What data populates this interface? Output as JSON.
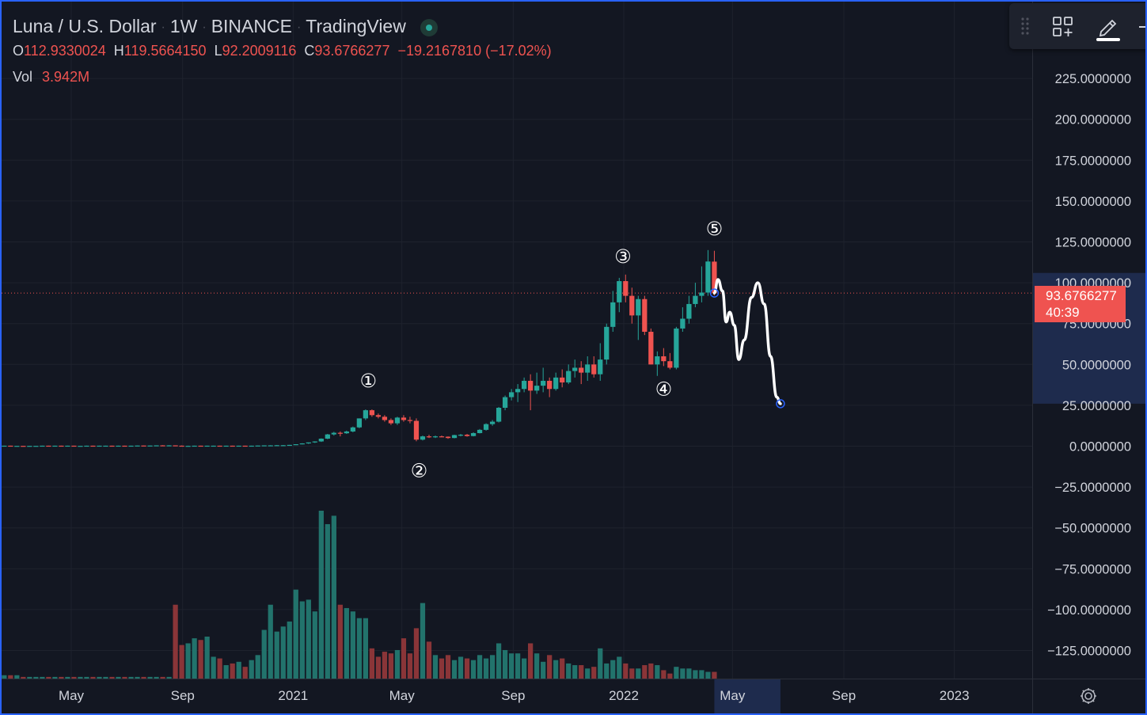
{
  "header": {
    "symbol": "Luna / U.S. Dollar",
    "interval": "1W",
    "exchange": "BINANCE",
    "source": "TradingView"
  },
  "ohlc": {
    "o_label": "O",
    "o": "112.9330024",
    "h_label": "H",
    "h": "119.5664150",
    "l_label": "L",
    "l": "92.2009116",
    "c_label": "C",
    "c": "93.6766277",
    "change": "−19.2167810 (−17.02%)"
  },
  "volume": {
    "label": "Vol",
    "value": "3.942M"
  },
  "price_tag": {
    "price": "93.6766277",
    "countdown": "40:39"
  },
  "colors": {
    "background": "#131722",
    "up": "#26a69a",
    "down": "#ef5350",
    "volume_up": "#22736c",
    "volume_down": "#8a3538",
    "grid": "#1e222d",
    "axis_text": "#d1d4dc",
    "highlight": "#1e2b4d",
    "frame": "#2962ff"
  },
  "icons": [
    "drag-handle-icon",
    "add-widget-icon",
    "pencil-icon",
    "settings-gear-icon"
  ],
  "chart_data": {
    "type": "candlestick",
    "title": "Luna / U.S. Dollar · 1W · BINANCE",
    "ylim": [
      -145,
      240
    ],
    "y_ticks": [
      "225.0000000",
      "200.0000000",
      "175.0000000",
      "150.0000000",
      "125.0000000",
      "100.0000000",
      "75.0000000",
      "50.0000000",
      "25.0000000",
      "0.0000000",
      "−25.0000000",
      "−50.0000000",
      "−75.0000000",
      "−100.0000000",
      "−125.0000000"
    ],
    "y_tick_values": [
      225,
      200,
      175,
      150,
      125,
      100,
      75,
      50,
      25,
      0,
      -25,
      -50,
      -75,
      -100,
      -125
    ],
    "x_ticks": [
      {
        "label": "May",
        "date": "2020-05-01"
      },
      {
        "label": "Sep",
        "date": "2020-09-01"
      },
      {
        "label": "2021",
        "date": "2021-01-01"
      },
      {
        "label": "May",
        "date": "2021-05-01"
      },
      {
        "label": "Sep",
        "date": "2021-09-01"
      },
      {
        "label": "2022",
        "date": "2022-01-01"
      },
      {
        "label": "May",
        "date": "2022-05-01"
      },
      {
        "label": "Sep",
        "date": "2022-09-01"
      },
      {
        "label": "2023",
        "date": "2023-01-01"
      }
    ],
    "x_range": [
      "2020-02-14",
      "2023-03-10"
    ],
    "last_price": 93.6766277,
    "volume_max": 100,
    "candles": [
      {
        "date": "2020-02-17",
        "o": 0.2,
        "h": 0.3,
        "l": 0.2,
        "c": 0.3,
        "v": 2
      },
      {
        "date": "2020-02-24",
        "o": 0.3,
        "h": 0.3,
        "l": 0.2,
        "c": 0.2,
        "v": 2
      },
      {
        "date": "2020-03-02",
        "o": 0.2,
        "h": 0.2,
        "l": 0.2,
        "c": 0.2,
        "v": 2
      },
      {
        "date": "2020-03-09",
        "o": 0.2,
        "h": 0.2,
        "l": 0.1,
        "c": 0.1,
        "v": 1
      },
      {
        "date": "2020-03-16",
        "o": 0.1,
        "h": 0.2,
        "l": 0.1,
        "c": 0.2,
        "v": 1
      },
      {
        "date": "2020-03-23",
        "o": 0.2,
        "h": 0.2,
        "l": 0.2,
        "c": 0.2,
        "v": 1
      },
      {
        "date": "2020-03-30",
        "o": 0.2,
        "h": 0.3,
        "l": 0.2,
        "c": 0.3,
        "v": 1
      },
      {
        "date": "2020-04-06",
        "o": 0.3,
        "h": 0.3,
        "l": 0.2,
        "c": 0.2,
        "v": 1
      },
      {
        "date": "2020-04-13",
        "o": 0.2,
        "h": 0.3,
        "l": 0.2,
        "c": 0.3,
        "v": 1
      },
      {
        "date": "2020-04-20",
        "o": 0.3,
        "h": 0.3,
        "l": 0.2,
        "c": 0.2,
        "v": 1
      },
      {
        "date": "2020-04-27",
        "o": 0.2,
        "h": 0.3,
        "l": 0.2,
        "c": 0.3,
        "v": 1
      },
      {
        "date": "2020-05-04",
        "o": 0.3,
        "h": 0.3,
        "l": 0.2,
        "c": 0.2,
        "v": 1
      },
      {
        "date": "2020-05-11",
        "o": 0.2,
        "h": 0.2,
        "l": 0.2,
        "c": 0.2,
        "v": 1
      },
      {
        "date": "2020-05-18",
        "o": 0.2,
        "h": 0.3,
        "l": 0.2,
        "c": 0.3,
        "v": 1
      },
      {
        "date": "2020-05-25",
        "o": 0.3,
        "h": 0.3,
        "l": 0.2,
        "c": 0.2,
        "v": 1
      },
      {
        "date": "2020-06-01",
        "o": 0.2,
        "h": 0.3,
        "l": 0.2,
        "c": 0.3,
        "v": 1
      },
      {
        "date": "2020-06-08",
        "o": 0.3,
        "h": 0.3,
        "l": 0.2,
        "c": 0.3,
        "v": 1
      },
      {
        "date": "2020-06-15",
        "o": 0.3,
        "h": 0.3,
        "l": 0.2,
        "c": 0.2,
        "v": 1
      },
      {
        "date": "2020-06-22",
        "o": 0.2,
        "h": 0.3,
        "l": 0.2,
        "c": 0.3,
        "v": 1
      },
      {
        "date": "2020-06-29",
        "o": 0.3,
        "h": 0.3,
        "l": 0.2,
        "c": 0.2,
        "v": 1
      },
      {
        "date": "2020-07-06",
        "o": 0.2,
        "h": 0.3,
        "l": 0.2,
        "c": 0.3,
        "v": 1
      },
      {
        "date": "2020-07-13",
        "o": 0.3,
        "h": 0.4,
        "l": 0.3,
        "c": 0.4,
        "v": 1
      },
      {
        "date": "2020-07-20",
        "o": 0.4,
        "h": 0.4,
        "l": 0.3,
        "c": 0.3,
        "v": 1
      },
      {
        "date": "2020-07-27",
        "o": 0.3,
        "h": 0.4,
        "l": 0.3,
        "c": 0.4,
        "v": 1
      },
      {
        "date": "2020-08-03",
        "o": 0.4,
        "h": 0.5,
        "l": 0.4,
        "c": 0.5,
        "v": 1
      },
      {
        "date": "2020-08-10",
        "o": 0.5,
        "h": 0.6,
        "l": 0.4,
        "c": 0.4,
        "v": 1
      },
      {
        "date": "2020-08-17",
        "o": 0.4,
        "h": 0.6,
        "l": 0.4,
        "c": 0.5,
        "v": 1
      },
      {
        "date": "2020-08-24",
        "o": 0.5,
        "h": 0.5,
        "l": 0.3,
        "c": 0.3,
        "v": 44
      },
      {
        "date": "2020-08-31",
        "o": 0.3,
        "h": 0.4,
        "l": 0.2,
        "c": 0.2,
        "v": 20
      },
      {
        "date": "2020-09-07",
        "o": 0.2,
        "h": 0.3,
        "l": 0.2,
        "c": 0.2,
        "v": 21
      },
      {
        "date": "2020-09-14",
        "o": 0.2,
        "h": 0.3,
        "l": 0.2,
        "c": 0.3,
        "v": 24
      },
      {
        "date": "2020-09-21",
        "o": 0.3,
        "h": 0.3,
        "l": 0.2,
        "c": 0.2,
        "v": 23
      },
      {
        "date": "2020-09-28",
        "o": 0.2,
        "h": 0.3,
        "l": 0.2,
        "c": 0.3,
        "v": 25
      },
      {
        "date": "2020-10-05",
        "o": 0.3,
        "h": 0.3,
        "l": 0.2,
        "c": 0.3,
        "v": 13
      },
      {
        "date": "2020-10-12",
        "o": 0.3,
        "h": 0.3,
        "l": 0.2,
        "c": 0.2,
        "v": 12
      },
      {
        "date": "2020-10-19",
        "o": 0.2,
        "h": 0.3,
        "l": 0.2,
        "c": 0.3,
        "v": 8
      },
      {
        "date": "2020-10-26",
        "o": 0.3,
        "h": 0.3,
        "l": 0.2,
        "c": 0.2,
        "v": 9
      },
      {
        "date": "2020-11-02",
        "o": 0.2,
        "h": 0.3,
        "l": 0.2,
        "c": 0.3,
        "v": 10
      },
      {
        "date": "2020-11-09",
        "o": 0.3,
        "h": 0.3,
        "l": 0.2,
        "c": 0.2,
        "v": 7
      },
      {
        "date": "2020-11-16",
        "o": 0.2,
        "h": 0.3,
        "l": 0.2,
        "c": 0.3,
        "v": 11
      },
      {
        "date": "2020-11-23",
        "o": 0.3,
        "h": 0.4,
        "l": 0.3,
        "c": 0.4,
        "v": 14
      },
      {
        "date": "2020-11-30",
        "o": 0.4,
        "h": 0.5,
        "l": 0.3,
        "c": 0.5,
        "v": 29
      },
      {
        "date": "2020-12-07",
        "o": 0.5,
        "h": 0.6,
        "l": 0.4,
        "c": 0.5,
        "v": 44
      },
      {
        "date": "2020-12-14",
        "o": 0.5,
        "h": 0.7,
        "l": 0.5,
        "c": 0.6,
        "v": 28
      },
      {
        "date": "2020-12-21",
        "o": 0.6,
        "h": 0.7,
        "l": 0.5,
        "c": 0.6,
        "v": 31
      },
      {
        "date": "2020-12-28",
        "o": 0.6,
        "h": 0.8,
        "l": 0.6,
        "c": 0.8,
        "v": 34
      },
      {
        "date": "2021-01-04",
        "o": 0.8,
        "h": 1.2,
        "l": 0.7,
        "c": 1.2,
        "v": 53
      },
      {
        "date": "2021-01-11",
        "o": 1.2,
        "h": 1.8,
        "l": 1.1,
        "c": 1.7,
        "v": 46
      },
      {
        "date": "2021-01-18",
        "o": 1.7,
        "h": 2.3,
        "l": 1.4,
        "c": 2.3,
        "v": 47
      },
      {
        "date": "2021-01-25",
        "o": 2.3,
        "h": 3.0,
        "l": 2.0,
        "c": 2.9,
        "v": 40
      },
      {
        "date": "2021-02-01",
        "o": 2.9,
        "h": 4.8,
        "l": 2.6,
        "c": 4.6,
        "v": 100
      },
      {
        "date": "2021-02-08",
        "o": 4.6,
        "h": 7.5,
        "l": 4.3,
        "c": 7.2,
        "v": 92
      },
      {
        "date": "2021-02-15",
        "o": 7.2,
        "h": 8.8,
        "l": 6.5,
        "c": 8.2,
        "v": 97
      },
      {
        "date": "2021-02-22",
        "o": 8.2,
        "h": 9.0,
        "l": 6.0,
        "c": 7.9,
        "v": 44
      },
      {
        "date": "2021-03-01",
        "o": 7.9,
        "h": 9.5,
        "l": 7.5,
        "c": 9.0,
        "v": 42
      },
      {
        "date": "2021-03-08",
        "o": 9.0,
        "h": 12.0,
        "l": 8.5,
        "c": 11.5,
        "v": 40
      },
      {
        "date": "2021-03-15",
        "o": 11.5,
        "h": 17.0,
        "l": 11.0,
        "c": 17.0,
        "v": 36
      },
      {
        "date": "2021-03-22",
        "o": 17.0,
        "h": 22.5,
        "l": 16.0,
        "c": 22.0,
        "v": 36
      },
      {
        "date": "2021-03-29",
        "o": 22.0,
        "h": 22.5,
        "l": 18.0,
        "c": 19.0,
        "v": 18
      },
      {
        "date": "2021-04-05",
        "o": 19.0,
        "h": 20.0,
        "l": 17.0,
        "c": 18.0,
        "v": 13
      },
      {
        "date": "2021-04-12",
        "o": 18.0,
        "h": 19.0,
        "l": 15.0,
        "c": 16.0,
        "v": 16
      },
      {
        "date": "2021-04-19",
        "o": 16.0,
        "h": 17.0,
        "l": 13.0,
        "c": 14.0,
        "v": 15
      },
      {
        "date": "2021-04-26",
        "o": 14.0,
        "h": 18.0,
        "l": 13.0,
        "c": 17.5,
        "v": 17
      },
      {
        "date": "2021-05-03",
        "o": 17.5,
        "h": 19.0,
        "l": 15.0,
        "c": 16.0,
        "v": 24
      },
      {
        "date": "2021-05-10",
        "o": 16.0,
        "h": 18.0,
        "l": 14.0,
        "c": 15.5,
        "v": 15
      },
      {
        "date": "2021-05-17",
        "o": 15.5,
        "h": 17.0,
        "l": 3.0,
        "c": 4.0,
        "v": 30
      },
      {
        "date": "2021-05-24",
        "o": 4.0,
        "h": 6.5,
        "l": 3.5,
        "c": 6.0,
        "v": 45
      },
      {
        "date": "2021-05-31",
        "o": 6.0,
        "h": 7.0,
        "l": 5.0,
        "c": 5.5,
        "v": 22
      },
      {
        "date": "2021-06-07",
        "o": 5.5,
        "h": 6.5,
        "l": 5.0,
        "c": 6.0,
        "v": 14
      },
      {
        "date": "2021-06-14",
        "o": 6.0,
        "h": 6.5,
        "l": 5.5,
        "c": 5.8,
        "v": 12
      },
      {
        "date": "2021-06-21",
        "o": 5.8,
        "h": 6.0,
        "l": 4.5,
        "c": 5.0,
        "v": 14
      },
      {
        "date": "2021-06-28",
        "o": 5.0,
        "h": 7.0,
        "l": 4.8,
        "c": 6.8,
        "v": 11
      },
      {
        "date": "2021-07-05",
        "o": 6.8,
        "h": 7.5,
        "l": 6.0,
        "c": 7.0,
        "v": 13
      },
      {
        "date": "2021-07-12",
        "o": 7.0,
        "h": 7.5,
        "l": 5.8,
        "c": 6.2,
        "v": 12
      },
      {
        "date": "2021-07-19",
        "o": 6.2,
        "h": 8.5,
        "l": 6.0,
        "c": 8.0,
        "v": 11
      },
      {
        "date": "2021-07-26",
        "o": 8.0,
        "h": 10.5,
        "l": 7.8,
        "c": 10.0,
        "v": 14
      },
      {
        "date": "2021-08-02",
        "o": 10.0,
        "h": 14.0,
        "l": 9.5,
        "c": 13.5,
        "v": 12
      },
      {
        "date": "2021-08-09",
        "o": 13.5,
        "h": 16.0,
        "l": 12.5,
        "c": 15.0,
        "v": 14
      },
      {
        "date": "2021-08-16",
        "o": 15.0,
        "h": 24.0,
        "l": 14.5,
        "c": 23.5,
        "v": 21
      },
      {
        "date": "2021-08-23",
        "o": 23.5,
        "h": 31.0,
        "l": 22.0,
        "c": 30.0,
        "v": 17
      },
      {
        "date": "2021-08-30",
        "o": 30.0,
        "h": 35.0,
        "l": 28.0,
        "c": 33.0,
        "v": 15
      },
      {
        "date": "2021-09-06",
        "o": 33.0,
        "h": 38.0,
        "l": 27.0,
        "c": 35.0,
        "v": 15
      },
      {
        "date": "2021-09-13",
        "o": 35.0,
        "h": 42.0,
        "l": 33.0,
        "c": 40.0,
        "v": 12
      },
      {
        "date": "2021-09-20",
        "o": 40.0,
        "h": 44.0,
        "l": 22.0,
        "c": 34.0,
        "v": 21
      },
      {
        "date": "2021-09-27",
        "o": 34.0,
        "h": 45.0,
        "l": 32.0,
        "c": 37.0,
        "v": 15
      },
      {
        "date": "2021-10-04",
        "o": 37.0,
        "h": 48.0,
        "l": 33.0,
        "c": 40.0,
        "v": 10
      },
      {
        "date": "2021-10-11",
        "o": 40.0,
        "h": 42.0,
        "l": 30.0,
        "c": 35.0,
        "v": 14
      },
      {
        "date": "2021-10-18",
        "o": 35.0,
        "h": 45.0,
        "l": 34.0,
        "c": 42.0,
        "v": 11
      },
      {
        "date": "2021-10-25",
        "o": 42.0,
        "h": 47.0,
        "l": 36.0,
        "c": 39.0,
        "v": 12
      },
      {
        "date": "2021-11-01",
        "o": 39.0,
        "h": 50.0,
        "l": 38.0,
        "c": 46.0,
        "v": 9
      },
      {
        "date": "2021-11-08",
        "o": 46.0,
        "h": 53.0,
        "l": 42.0,
        "c": 48.0,
        "v": 8
      },
      {
        "date": "2021-11-15",
        "o": 48.0,
        "h": 52.0,
        "l": 38.0,
        "c": 45.0,
        "v": 8
      },
      {
        "date": "2021-11-22",
        "o": 45.0,
        "h": 55.0,
        "l": 40.0,
        "c": 50.0,
        "v": 6
      },
      {
        "date": "2021-11-29",
        "o": 50.0,
        "h": 55.0,
        "l": 42.0,
        "c": 44.0,
        "v": 7
      },
      {
        "date": "2021-12-06",
        "o": 44.0,
        "h": 63.0,
        "l": 40.0,
        "c": 53.0,
        "v": 18
      },
      {
        "date": "2021-12-13",
        "o": 53.0,
        "h": 75.0,
        "l": 50.0,
        "c": 73.0,
        "v": 9
      },
      {
        "date": "2021-12-20",
        "o": 73.0,
        "h": 95.0,
        "l": 70.0,
        "c": 88.0,
        "v": 11
      },
      {
        "date": "2021-12-27",
        "o": 88.0,
        "h": 103.0,
        "l": 82.0,
        "c": 101.0,
        "v": 13
      },
      {
        "date": "2022-01-03",
        "o": 101.0,
        "h": 105.0,
        "l": 88.0,
        "c": 92.0,
        "v": 9
      },
      {
        "date": "2022-01-10",
        "o": 92.0,
        "h": 97.0,
        "l": 75.0,
        "c": 80.0,
        "v": 6
      },
      {
        "date": "2022-01-17",
        "o": 80.0,
        "h": 92.0,
        "l": 65.0,
        "c": 90.0,
        "v": 6
      },
      {
        "date": "2022-01-24",
        "o": 90.0,
        "h": 92.0,
        "l": 68.0,
        "c": 70.0,
        "v": 8
      },
      {
        "date": "2022-01-31",
        "o": 70.0,
        "h": 72.0,
        "l": 50.0,
        "c": 50.0,
        "v": 9
      },
      {
        "date": "2022-02-07",
        "o": 50.0,
        "h": 58.0,
        "l": 43.0,
        "c": 55.0,
        "v": 8
      },
      {
        "date": "2022-02-14",
        "o": 55.0,
        "h": 60.0,
        "l": 49.0,
        "c": 52.0,
        "v": 5
      },
      {
        "date": "2022-02-21",
        "o": 52.0,
        "h": 57.0,
        "l": 47.0,
        "c": 48.0,
        "v": 3
      },
      {
        "date": "2022-02-28",
        "o": 48.0,
        "h": 73.0,
        "l": 47.0,
        "c": 72.0,
        "v": 7
      },
      {
        "date": "2022-03-07",
        "o": 72.0,
        "h": 85.0,
        "l": 70.0,
        "c": 78.0,
        "v": 6
      },
      {
        "date": "2022-03-14",
        "o": 78.0,
        "h": 92.0,
        "l": 75.0,
        "c": 87.0,
        "v": 6
      },
      {
        "date": "2022-03-21",
        "o": 87.0,
        "h": 100.0,
        "l": 85.0,
        "c": 92.0,
        "v": 5
      },
      {
        "date": "2022-03-28",
        "o": 92.0,
        "h": 110.0,
        "l": 88.0,
        "c": 94.0,
        "v": 5
      },
      {
        "date": "2022-04-04",
        "o": 94.0,
        "h": 120.0,
        "l": 92.0,
        "c": 113.0,
        "v": 4
      },
      {
        "date": "2022-04-11",
        "o": 112.9330024,
        "h": 119.566415,
        "l": 92.2009116,
        "c": 93.6766277,
        "v": 4
      }
    ],
    "annotations": [
      {
        "label": "①",
        "date": "2021-03-25",
        "y": 40
      },
      {
        "label": "②",
        "date": "2021-05-20",
        "y": -15
      },
      {
        "label": "③",
        "date": "2021-12-31",
        "y": 116
      },
      {
        "label": "④",
        "date": "2022-02-14",
        "y": 35
      },
      {
        "label": "⑤",
        "date": "2022-04-11",
        "y": 133
      }
    ],
    "projection": [
      {
        "date": "2022-04-11",
        "y": 93.7
      },
      {
        "date": "2022-04-15",
        "y": 102
      },
      {
        "date": "2022-04-20",
        "y": 95
      },
      {
        "date": "2022-04-24",
        "y": 76
      },
      {
        "date": "2022-04-28",
        "y": 82
      },
      {
        "date": "2022-05-03",
        "y": 74
      },
      {
        "date": "2022-05-08",
        "y": 53
      },
      {
        "date": "2022-05-14",
        "y": 65
      },
      {
        "date": "2022-05-22",
        "y": 91
      },
      {
        "date": "2022-05-29",
        "y": 100
      },
      {
        "date": "2022-06-05",
        "y": 87
      },
      {
        "date": "2022-06-12",
        "y": 55
      },
      {
        "date": "2022-06-19",
        "y": 30
      },
      {
        "date": "2022-06-23",
        "y": 26
      }
    ],
    "highlight_range": [
      "2022-04-11",
      "2022-06-23"
    ],
    "highlight_price_range": [
      26,
      106
    ]
  }
}
